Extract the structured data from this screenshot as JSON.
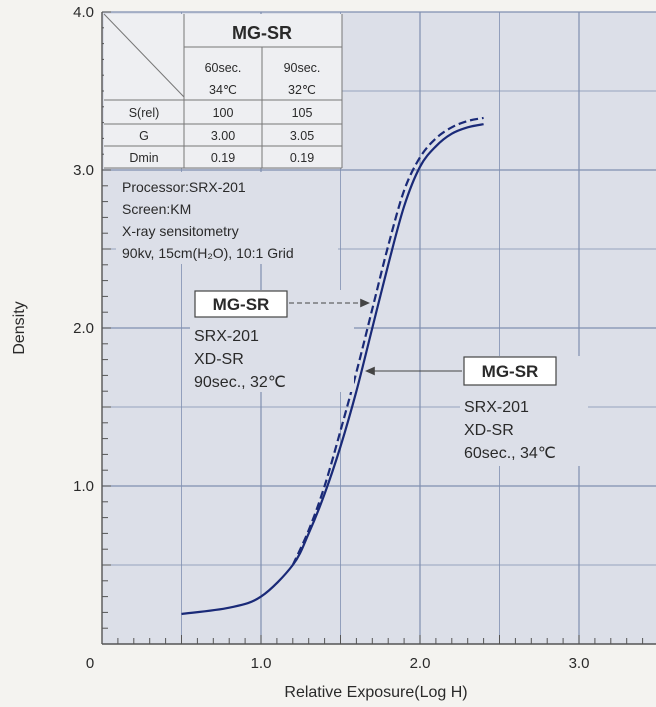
{
  "chart_data": {
    "type": "line",
    "xlabel": "Relative Exposure(Log H)",
    "ylabel": "Density",
    "xlim": [
      0,
      3.5
    ],
    "ylim": [
      0,
      4.0
    ],
    "x_ticks": [
      {
        "value": 0,
        "label": "0"
      },
      {
        "value": 1.0,
        "label": "1.0"
      },
      {
        "value": 2.0,
        "label": "2.0"
      },
      {
        "value": 3.0,
        "label": "3.0"
      }
    ],
    "y_ticks": [
      {
        "value": 1.0,
        "label": "1.0"
      },
      {
        "value": 2.0,
        "label": "2.0"
      },
      {
        "value": 3.0,
        "label": "3.0"
      },
      {
        "value": 4.0,
        "label": "4.0"
      }
    ],
    "grid": true,
    "series": [
      {
        "name": "MG-SR",
        "style": "solid",
        "color": "#1a2a78",
        "x": [
          0.5,
          0.8,
          1.0,
          1.2,
          1.3,
          1.4,
          1.5,
          1.6,
          1.7,
          1.8,
          1.9,
          2.0,
          2.1,
          2.2,
          2.3,
          2.4
        ],
        "y": [
          0.19,
          0.23,
          0.3,
          0.5,
          0.7,
          0.95,
          1.25,
          1.6,
          2.0,
          2.4,
          2.77,
          3.02,
          3.15,
          3.23,
          3.27,
          3.29
        ]
      },
      {
        "name": "MG-SR",
        "style": "dashed",
        "color": "#1a2a78",
        "x": [
          1.2,
          1.3,
          1.4,
          1.5,
          1.6,
          1.7,
          1.8,
          1.9,
          2.0,
          2.1,
          2.2,
          2.3,
          2.4
        ],
        "y": [
          0.5,
          0.72,
          1.0,
          1.35,
          1.72,
          2.12,
          2.52,
          2.87,
          3.08,
          3.2,
          3.27,
          3.31,
          3.33
        ]
      }
    ]
  },
  "table": {
    "title": "MG-SR",
    "col1_line1": "60sec.",
    "col1_line2": "34℃",
    "col2_line1": "90sec.",
    "col2_line2": "32℃",
    "rows": [
      {
        "label": "S(rel)",
        "v1": "100",
        "v2": "105"
      },
      {
        "label": "G",
        "v1": "3.00",
        "v2": "3.05"
      },
      {
        "label": "Dmin",
        "v1": "0.19",
        "v2": "0.19"
      }
    ]
  },
  "conditions": [
    "Processor:SRX-201",
    "Screen:KM",
    "X-ray sensitometry",
    "90kv, 15cm(H₂O), 10:1 Grid"
  ],
  "label_dashed": {
    "title": "MG-SR",
    "lines": [
      "SRX-201",
      "XD-SR",
      "90sec., 32℃"
    ]
  },
  "label_solid": {
    "title": "MG-SR",
    "lines": [
      "SRX-201",
      "XD-SR",
      "60sec., 34℃"
    ]
  }
}
